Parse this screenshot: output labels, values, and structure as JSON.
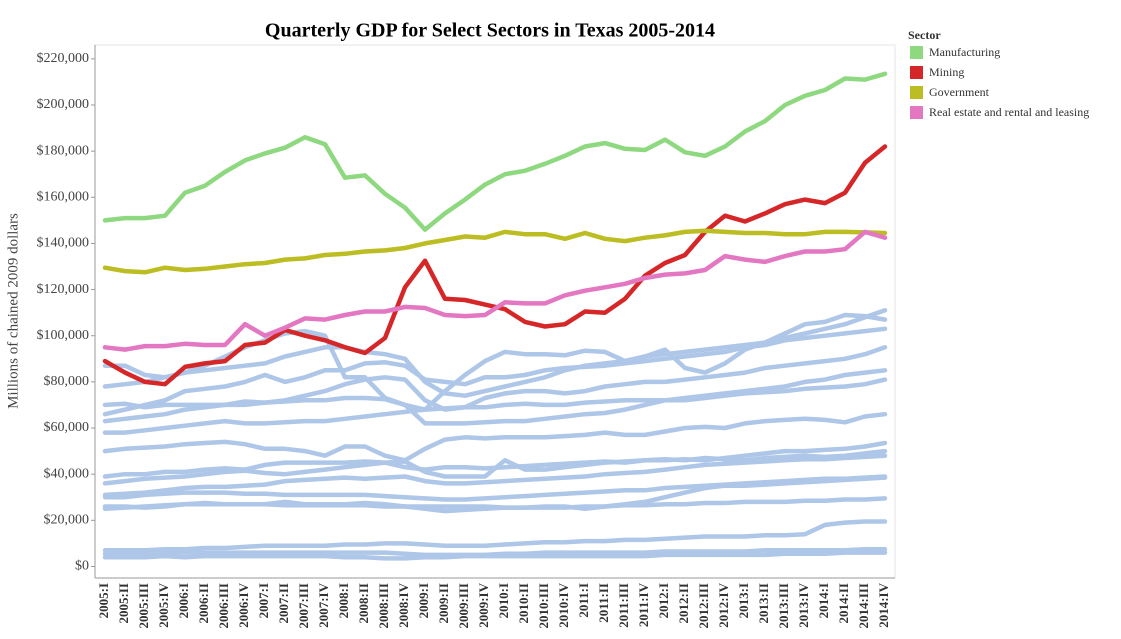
{
  "chart_data": {
    "type": "line",
    "title": "Quarterly GDP for Select Sectors in Texas 2005-2014",
    "y_label": "Millions of chained 2009 dollars",
    "legend_title": "Sector",
    "legend_position": "right",
    "categories": [
      "2005:I",
      "2005:II",
      "2005:III",
      "2005:IV",
      "2006:I",
      "2006:II",
      "2006:III",
      "2006:IV",
      "2007:I",
      "2007:II",
      "2007:III",
      "2007:IV",
      "2008:I",
      "2008:II",
      "2008:III",
      "2008:IV",
      "2009:I",
      "2009:II",
      "2009:III",
      "2009:IV",
      "2010:I",
      "2010:II",
      "2010:III",
      "2010:IV",
      "2011:I",
      "2011:II",
      "2011:III",
      "2011:IV",
      "2012:I",
      "2012:II",
      "2012:III",
      "2012:IV",
      "2013:I",
      "2013:II",
      "2013:III",
      "2013:IV",
      "2014:I",
      "2014:II",
      "2014:III",
      "2014:IV"
    ],
    "ylim": [
      -5000,
      226000
    ],
    "yticks": [
      {
        "value": 0,
        "label": "$0"
      },
      {
        "value": 20000,
        "label": "$20,000"
      },
      {
        "value": 40000,
        "label": "$40,000"
      },
      {
        "value": 60000,
        "label": "$60,000"
      },
      {
        "value": 80000,
        "label": "$80,000"
      },
      {
        "value": 100000,
        "label": "$100,000"
      },
      {
        "value": 120000,
        "label": "$120,000"
      },
      {
        "value": 140000,
        "label": "$140,000"
      },
      {
        "value": 160000,
        "label": "$160,000"
      },
      {
        "value": 180000,
        "label": "$180,000"
      },
      {
        "value": 200000,
        "label": "$200,000"
      },
      {
        "value": 220000,
        "label": "$220,000"
      }
    ],
    "background_series": [
      {
        "color": "#aec6e8",
        "values": [
          87000,
          87000,
          83000,
          82000,
          84000,
          85000,
          86000,
          87000,
          88000,
          91000,
          93000,
          95000,
          95000,
          93000,
          92000,
          90000,
          80000,
          75000,
          74000,
          76000,
          78000,
          80000,
          82000,
          85000,
          87000,
          88000,
          89000,
          91000,
          92000,
          93000,
          94000,
          95000,
          96000,
          97000,
          99000,
          101000,
          103000,
          105000,
          108000,
          111000
        ]
      },
      {
        "color": "#aec6e8",
        "values": [
          78000,
          79000,
          80000,
          82000,
          84000,
          87000,
          91000,
          95000,
          98000,
          101000,
          102000,
          100000,
          82000,
          82000,
          73000,
          70000,
          68000,
          76000,
          83000,
          89000,
          93000,
          92000,
          92000,
          91500,
          93500,
          93000,
          89000,
          91000,
          94000,
          86000,
          84000,
          88000,
          94000,
          97000,
          101000,
          105000,
          106000,
          109000,
          108500,
          107000
        ]
      },
      {
        "color": "#aec6e8",
        "values": [
          66000,
          68000,
          70000,
          72000,
          76000,
          77000,
          78000,
          80000,
          83000,
          80000,
          82000,
          85000,
          85000,
          88000,
          88500,
          87000,
          81000,
          80000,
          79000,
          82000,
          82000,
          83000,
          85000,
          86000,
          86500,
          87000,
          88000,
          89000,
          90000,
          91000,
          92000,
          93000,
          95000,
          96000,
          98000,
          99000,
          100000,
          101000,
          102000,
          103000
        ]
      },
      {
        "color": "#aec6e8",
        "values": [
          70000,
          70500,
          69000,
          70000,
          70000,
          70000,
          70000,
          71500,
          71000,
          71500,
          72000,
          72000,
          73000,
          73000,
          72500,
          70000,
          62000,
          62000,
          62000,
          62500,
          63000,
          63000,
          64000,
          65000,
          66000,
          66500,
          68000,
          70000,
          72000,
          73000,
          74000,
          75000,
          76000,
          77000,
          78000,
          80000,
          81000,
          83000,
          84000,
          85000
        ]
      },
      {
        "color": "#aec6e8",
        "values": [
          63000,
          64000,
          65000,
          66000,
          68000,
          69000,
          70000,
          70000,
          71000,
          72000,
          74000,
          76000,
          79000,
          81000,
          82000,
          81000,
          72000,
          68000,
          69000,
          73000,
          75000,
          76000,
          76000,
          75000,
          76000,
          78000,
          79000,
          80000,
          80000,
          81000,
          82000,
          83000,
          84000,
          86000,
          87000,
          88000,
          89000,
          90000,
          92000,
          95000
        ]
      },
      {
        "color": "#aec6e8",
        "values": [
          58000,
          58000,
          59000,
          60000,
          61000,
          62000,
          63000,
          62000,
          62000,
          62500,
          63000,
          63000,
          64000,
          65000,
          66000,
          67000,
          68000,
          68500,
          69000,
          69000,
          70000,
          70500,
          70000,
          70000,
          71000,
          71500,
          72000,
          72000,
          72000,
          72000,
          73000,
          74000,
          75000,
          75500,
          76000,
          77000,
          77500,
          78000,
          79000,
          81000
        ]
      },
      {
        "color": "#aec6e8",
        "values": [
          50000,
          51000,
          51500,
          52000,
          53000,
          53500,
          54000,
          53000,
          51000,
          51000,
          50000,
          48000,
          52000,
          52000,
          48000,
          46000,
          51000,
          55000,
          56000,
          55500,
          56000,
          56000,
          56000,
          56500,
          57000,
          58000,
          57000,
          57000,
          58500,
          60000,
          60500,
          60000,
          62000,
          63000,
          63500,
          64000,
          63500,
          62500,
          65000,
          66000
        ]
      },
      {
        "color": "#aec6e8",
        "values": [
          39000,
          40000,
          40000,
          41000,
          41000,
          42000,
          42500,
          42000,
          44000,
          45000,
          45000,
          45000,
          45000,
          45500,
          45000,
          43000,
          42000,
          43000,
          43000,
          42500,
          43000,
          43500,
          44000,
          44500,
          45000,
          45500,
          45000,
          46000,
          46000,
          46500,
          46000,
          47000,
          48000,
          49000,
          50000,
          50000,
          50500,
          51000,
          52000,
          53500
        ]
      },
      {
        "color": "#aec6e8",
        "values": [
          36000,
          37000,
          38000,
          38500,
          39000,
          40000,
          41000,
          41500,
          40500,
          40000,
          41000,
          42000,
          43000,
          44000,
          45000,
          45500,
          41000,
          39000,
          39000,
          39000,
          46000,
          42000,
          42000,
          43000,
          44000,
          45000,
          45500,
          46000,
          46500,
          46000,
          47000,
          46500,
          46000,
          47000,
          47500,
          48000,
          47500,
          48000,
          49000,
          50000
        ]
      },
      {
        "color": "#aec6e8",
        "values": [
          31000,
          31500,
          32000,
          33000,
          34000,
          34500,
          34500,
          35000,
          35500,
          37000,
          37500,
          38000,
          38500,
          38000,
          38500,
          39000,
          37000,
          36000,
          36000,
          36500,
          37000,
          37500,
          38000,
          38500,
          39000,
          40000,
          40500,
          41000,
          42000,
          43000,
          44000,
          44500,
          45000,
          45500,
          46000,
          46500,
          46500,
          47000,
          47500,
          48000
        ]
      },
      {
        "color": "#aec6e8",
        "values": [
          30000,
          30000,
          31000,
          31500,
          32000,
          32000,
          32000,
          31500,
          31500,
          31000,
          31000,
          31000,
          31000,
          31000,
          30500,
          30000,
          29500,
          29000,
          29000,
          29500,
          30000,
          30500,
          31000,
          31500,
          32000,
          32500,
          33000,
          33000,
          34000,
          34500,
          35000,
          35500,
          36000,
          36500,
          37000,
          37500,
          38000,
          38000,
          38500,
          39000
        ]
      },
      {
        "color": "#aec6e8",
        "values": [
          26000,
          26000,
          25500,
          26000,
          27000,
          27500,
          27000,
          27000,
          27000,
          28000,
          27000,
          27000,
          27000,
          27500,
          27000,
          26000,
          25000,
          24000,
          24500,
          25000,
          25500,
          25500,
          26000,
          26000,
          25000,
          26000,
          27000,
          28000,
          30000,
          32000,
          34000,
          35000,
          35000,
          35500,
          36000,
          36500,
          37000,
          37500,
          38000,
          38500
        ]
      },
      {
        "color": "#aec6e8",
        "values": [
          25000,
          25500,
          26000,
          26500,
          27000,
          27000,
          27000,
          27000,
          27000,
          26500,
          26500,
          26500,
          26500,
          26500,
          26000,
          26000,
          26000,
          26000,
          26000,
          26000,
          25500,
          25500,
          25500,
          25500,
          26000,
          26000,
          26500,
          26500,
          27000,
          27000,
          27500,
          27500,
          28000,
          28000,
          28000,
          28500,
          28500,
          29000,
          29000,
          29500
        ]
      },
      {
        "color": "#aec6e8",
        "values": [
          7000,
          7000,
          7000,
          7500,
          7500,
          8000,
          8000,
          8500,
          9000,
          9000,
          9000,
          9000,
          9500,
          9500,
          10000,
          10000,
          9500,
          9000,
          9000,
          9000,
          9500,
          10000,
          10500,
          10500,
          11000,
          11000,
          11500,
          11500,
          12000,
          12500,
          13000,
          13000,
          13000,
          13500,
          13500,
          14000,
          18000,
          19000,
          19500,
          19500
        ]
      },
      {
        "color": "#aec6e8",
        "values": [
          5500,
          5500,
          5500,
          6000,
          6000,
          6000,
          6000,
          6000,
          6000,
          6000,
          6000,
          6000,
          6000,
          6000,
          6000,
          5500,
          5000,
          5000,
          5000,
          5000,
          5500,
          5500,
          6000,
          6000,
          6000,
          6000,
          6000,
          6000,
          6500,
          6500,
          6500,
          6500,
          6500,
          7000,
          7000,
          7000,
          7000,
          7000,
          7500,
          7500
        ]
      },
      {
        "color": "#aec6e8",
        "values": [
          4000,
          4000,
          4000,
          4500,
          4000,
          4500,
          4500,
          4500,
          4500,
          4500,
          4500,
          4500,
          4000,
          4000,
          3500,
          3500,
          4000,
          4000,
          4500,
          4500,
          4500,
          4500,
          4500,
          4500,
          4500,
          4500,
          4500,
          4500,
          5000,
          5000,
          5000,
          5000,
          5000,
          5000,
          5500,
          5500,
          5500,
          6000,
          6000,
          6000
        ]
      }
    ],
    "series": [
      {
        "name": "Manufacturing",
        "color": "#8ed97f",
        "values": [
          150000,
          151000,
          151000,
          152000,
          162000,
          165000,
          171000,
          176000,
          179000,
          181500,
          186000,
          183000,
          168500,
          169500,
          161500,
          155500,
          146000,
          153000,
          159000,
          165500,
          170000,
          171500,
          174500,
          178000,
          182000,
          183500,
          181000,
          180500,
          185000,
          179500,
          178000,
          182000,
          188500,
          193000,
          200000,
          204000,
          206500,
          211500,
          211000,
          213500
        ]
      },
      {
        "name": "Mining",
        "color": "#d62728",
        "values": [
          89000,
          84000,
          80000,
          79000,
          86500,
          88000,
          89000,
          96000,
          97000,
          102500,
          100000,
          98000,
          95000,
          92500,
          99000,
          121000,
          132500,
          116000,
          115500,
          113500,
          111500,
          106000,
          104000,
          105000,
          110500,
          110000,
          116000,
          126000,
          131500,
          135000,
          145000,
          152000,
          149500,
          153000,
          157000,
          159000,
          157500,
          162000,
          175000,
          182000
        ]
      },
      {
        "name": "Government",
        "color": "#bcbd22",
        "values": [
          129500,
          128000,
          127500,
          129500,
          128500,
          129000,
          130000,
          131000,
          131500,
          133000,
          133500,
          135000,
          135500,
          136500,
          137000,
          138000,
          140000,
          141500,
          143000,
          142500,
          145000,
          144000,
          144000,
          142000,
          144500,
          142000,
          141000,
          142500,
          143500,
          145000,
          145500,
          145000,
          144500,
          144500,
          144000,
          144000,
          145000,
          145000,
          144800,
          144500
        ]
      },
      {
        "name": "Real estate and rental and leasing",
        "color": "#e377c2",
        "values": [
          95000,
          94000,
          95500,
          95500,
          96500,
          96000,
          96000,
          105000,
          100000,
          103500,
          107500,
          107000,
          109000,
          110500,
          110500,
          112500,
          112000,
          109000,
          108500,
          109000,
          114500,
          114000,
          114000,
          117500,
          119500,
          121000,
          122500,
          125000,
          126500,
          127000,
          128500,
          134500,
          133000,
          132000,
          134500,
          136500,
          136500,
          137500,
          145000,
          142500
        ]
      }
    ]
  }
}
